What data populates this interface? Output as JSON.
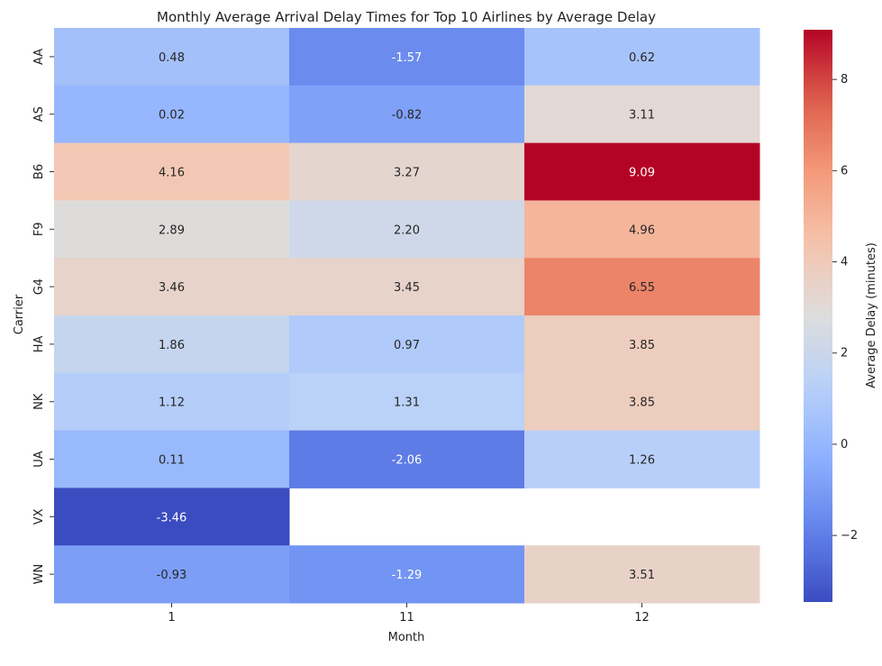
{
  "chart_data": {
    "type": "heatmap",
    "title": "Monthly Average Arrival Delay Times for Top 10 Airlines by Average Delay",
    "xlabel": "Month",
    "ylabel": "Carrier",
    "x": [
      "1",
      "11",
      "12"
    ],
    "y": [
      "AA",
      "AS",
      "B6",
      "F9",
      "G4",
      "HA",
      "NK",
      "UA",
      "VX",
      "WN"
    ],
    "values": [
      [
        0.48,
        -1.57,
        0.62
      ],
      [
        0.02,
        -0.82,
        3.11
      ],
      [
        4.16,
        3.27,
        9.09
      ],
      [
        2.89,
        2.2,
        4.96
      ],
      [
        3.46,
        3.45,
        6.55
      ],
      [
        1.86,
        0.97,
        3.85
      ],
      [
        1.12,
        1.31,
        3.85
      ],
      [
        0.11,
        -2.06,
        1.26
      ],
      [
        -3.46,
        null,
        null
      ],
      [
        -0.93,
        -1.29,
        3.51
      ]
    ],
    "value_format": "0.00",
    "colormap": "coolwarm",
    "colorbar": {
      "label": "Average Delay (minutes)",
      "range": [
        -3.46,
        9.09
      ],
      "ticks": [
        -2,
        0,
        2,
        4,
        6,
        8
      ],
      "tick_labels": [
        "−2",
        "0",
        "2",
        "4",
        "6",
        "8"
      ]
    },
    "grid": false,
    "missing_cells": "blank"
  }
}
